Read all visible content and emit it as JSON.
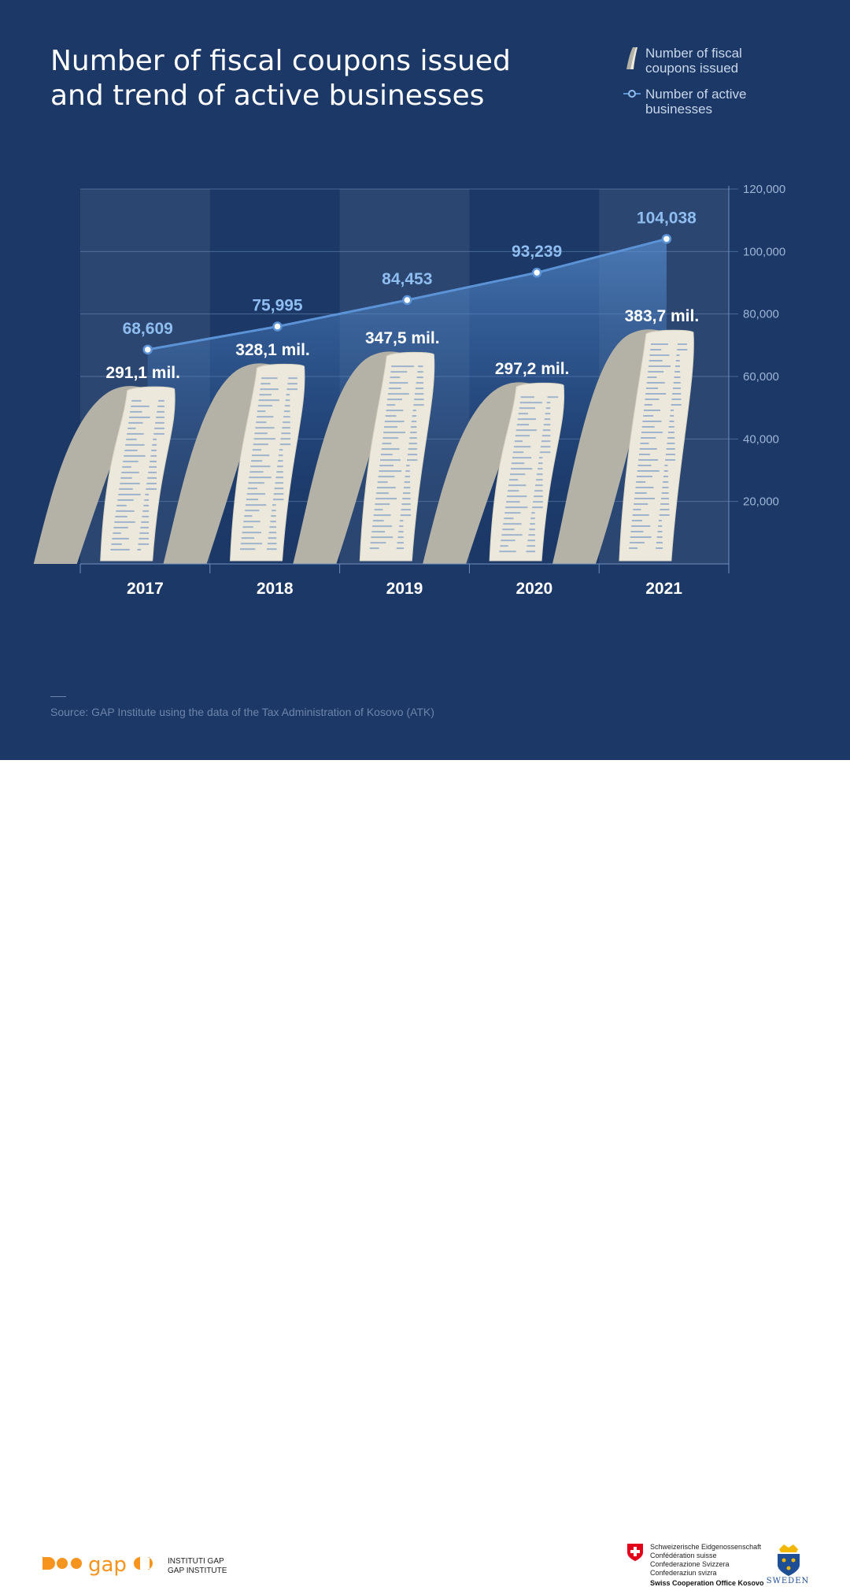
{
  "title_line1": "Number of fiscal coupons issued",
  "title_line2": "and trend of active businesses",
  "legend": {
    "coupons": "Number of fiscal coupons issued",
    "businesses": "Number of active businesses"
  },
  "source": "Source: GAP Institute using the data of the Tax Administration of Kosovo (ATK)",
  "footer": {
    "gap_line1": "INSTITUTI GAP",
    "gap_line2": "GAP INSTITUTE",
    "swiss_lines": [
      "Schweizerische Eidgenossenschaft",
      "Confédération suisse",
      "Confederazione Svizzera",
      "Confederaziun svizra"
    ],
    "swiss_office": "Swiss Cooperation Office Kosovo",
    "sweden": "SWEDEN"
  },
  "colors": {
    "background": "#1b3867",
    "line": "#5b93d6",
    "label_blue": "#8fbdf0",
    "paper": "#ece9dc",
    "paper_shadow": "#b4b2a6",
    "gap_orange": "#f7941d"
  },
  "chart_data": {
    "type": "bar",
    "categories": [
      "2017",
      "2018",
      "2019",
      "2020",
      "2021"
    ],
    "series": [
      {
        "name": "Number of fiscal coupons issued",
        "values": [
          291.1,
          328.1,
          347.5,
          297.2,
          383.7
        ],
        "labels": [
          "291,1 mil.",
          "328,1 mil.",
          "347,5 mil.",
          "297,2 mil.",
          "383,7 mil."
        ]
      },
      {
        "name": "Number of active businesses",
        "values": [
          68609,
          75995,
          84453,
          93239,
          104038
        ],
        "labels": [
          "68,609",
          "75,995",
          "84,453",
          "93,239",
          "104,038"
        ]
      }
    ],
    "y_ticks": [
      "120,000",
      "100,000",
      "80,000",
      "60,000",
      "40,000",
      "20,000"
    ],
    "y_tick_values": [
      120000,
      100000,
      80000,
      60000,
      40000,
      20000
    ],
    "ylim": [
      0,
      120000
    ],
    "y_axis_position": "right",
    "grid": true
  }
}
